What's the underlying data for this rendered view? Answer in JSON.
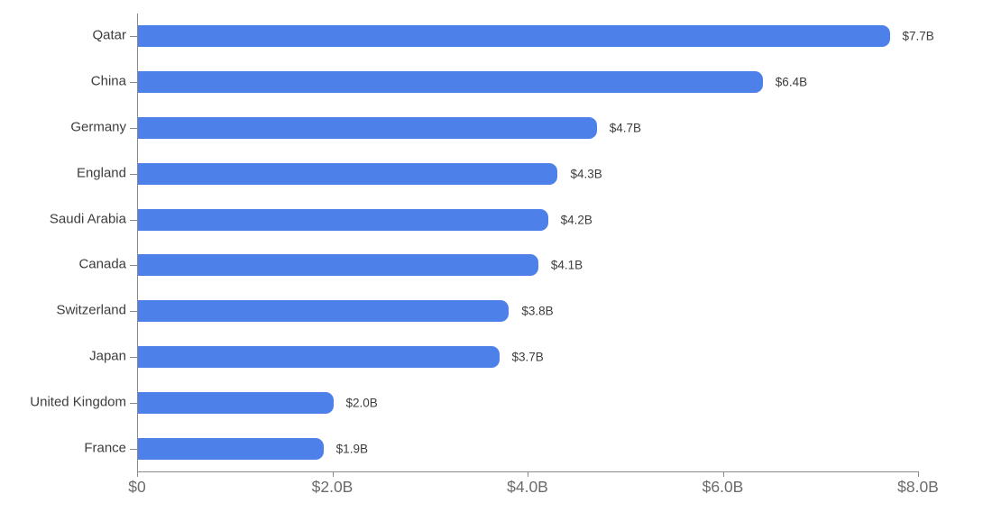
{
  "chart_data": {
    "type": "bar",
    "orientation": "horizontal",
    "title": "",
    "xlabel": "",
    "ylabel": "",
    "categories": [
      "Qatar",
      "China",
      "Germany",
      "England",
      "Saudi Arabia",
      "Canada",
      "Switzerland",
      "Japan",
      "United Kingdom",
      "France"
    ],
    "values": [
      7.7,
      6.4,
      4.7,
      4.3,
      4.2,
      4.1,
      3.8,
      3.7,
      2.0,
      1.9
    ],
    "value_labels": [
      "$7.7B",
      "$6.4B",
      "$4.7B",
      "$4.3B",
      "$4.2B",
      "$4.1B",
      "$3.8B",
      "$3.7B",
      "$2.0B",
      "$1.9B"
    ],
    "x_ticks": [
      {
        "value": 0,
        "label": "$0"
      },
      {
        "value": 2,
        "label": "$2.0B"
      },
      {
        "value": 4,
        "label": "$4.0B"
      },
      {
        "value": 6,
        "label": "$6.0B"
      },
      {
        "value": 8,
        "label": "$8.0B"
      }
    ],
    "xlim": [
      0,
      8
    ],
    "grid": "off",
    "legend": "none",
    "colors": {
      "bar": "#4e80e9",
      "axis": "#8a8a8a",
      "category_label": "#3d3d3d",
      "value_label": "#3d3d3d",
      "tick_label": "#6b6b6b",
      "background": "#ffffff"
    }
  }
}
